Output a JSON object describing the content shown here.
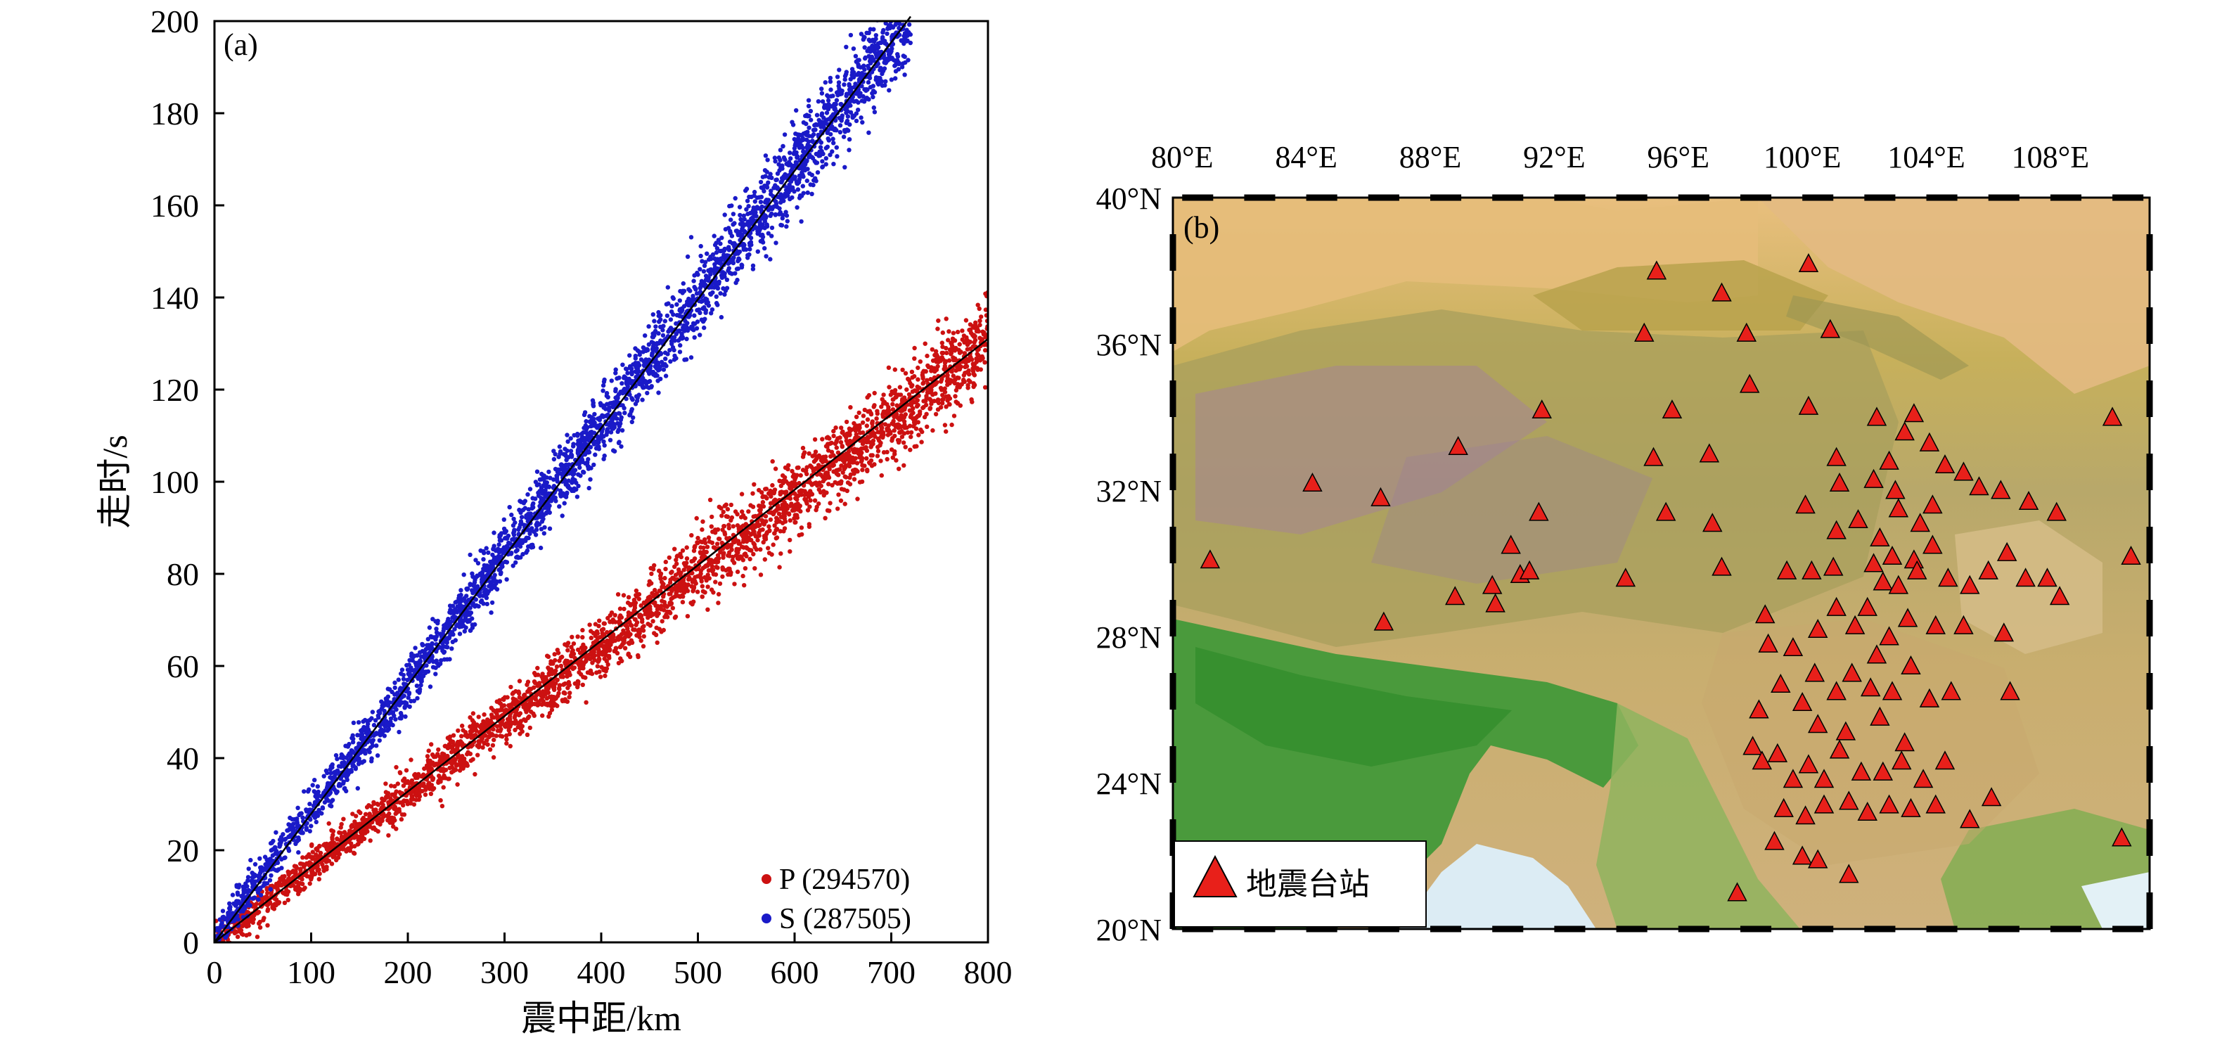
{
  "chart_data": [
    {
      "type": "scatter",
      "panel_label": "(a)",
      "xlabel": "震中距/km",
      "ylabel": "走时/s",
      "xlim": [
        0,
        800
      ],
      "ylim": [
        0,
        200
      ],
      "x_ticks": [
        0,
        100,
        200,
        300,
        400,
        500,
        600,
        700,
        800
      ],
      "y_ticks": [
        0,
        20,
        40,
        60,
        80,
        100,
        120,
        140,
        160,
        180,
        200
      ],
      "grid": false,
      "legend_position": "bottom-right",
      "series": [
        {
          "name": "P (294570)",
          "color": "#cc1111",
          "x": [
            0,
            50,
            100,
            150,
            200,
            250,
            300,
            350,
            400,
            450,
            500,
            550,
            600,
            650,
            700,
            750,
            800
          ],
          "y": [
            0,
            8,
            16.5,
            24.5,
            32.5,
            40.5,
            48.5,
            56,
            64,
            72.5,
            81,
            89,
            97,
            105,
            113,
            122,
            131
          ],
          "fit_line": {
            "x": [
              0,
              800
            ],
            "y": [
              0,
              131
            ]
          }
        },
        {
          "name": "S (287505)",
          "color": "#1a1ac8",
          "x": [
            0,
            50,
            100,
            150,
            200,
            250,
            300,
            350,
            400,
            450,
            500,
            550,
            600,
            650,
            700,
            720
          ],
          "y": [
            1,
            15,
            29,
            42,
            56,
            70,
            84,
            98,
            112,
            126,
            140,
            154,
            168,
            182,
            196,
            201
          ],
          "fit_line": {
            "x": [
              0,
              720
            ],
            "y": [
              0,
              201
            ]
          }
        }
      ]
    },
    {
      "type": "scatter",
      "panel_label": "(b)",
      "subtype": "station map",
      "lon_range": [
        79.7,
        111.2
      ],
      "lat_range": [
        20,
        40
      ],
      "lon_ticks": [
        "80°E",
        "84°E",
        "88°E",
        "92°E",
        "96°E",
        "100°E",
        "104°E",
        "108°E"
      ],
      "lon_tick_values": [
        80,
        84,
        88,
        92,
        96,
        100,
        104,
        108
      ],
      "lat_ticks": [
        "40°N",
        "36°N",
        "32°N",
        "28°N",
        "24°N",
        "20°N"
      ],
      "lat_tick_values": [
        40,
        36,
        32,
        28,
        24,
        20
      ],
      "legend_label": "地震台站",
      "legend_position": "bottom-left",
      "marker_color": "#e8201a",
      "stations": [
        [
          95.3,
          38.0
        ],
        [
          100.2,
          38.2
        ],
        [
          97.4,
          37.4
        ],
        [
          94.9,
          36.3
        ],
        [
          98.2,
          36.3
        ],
        [
          100.9,
          36.4
        ],
        [
          98.3,
          34.9
        ],
        [
          91.6,
          34.2
        ],
        [
          95.8,
          34.2
        ],
        [
          100.2,
          34.3
        ],
        [
          102.4,
          34.0
        ],
        [
          103.6,
          34.1
        ],
        [
          88.9,
          33.2
        ],
        [
          95.2,
          32.9
        ],
        [
          97.0,
          33.0
        ],
        [
          101.1,
          32.9
        ],
        [
          102.8,
          32.8
        ],
        [
          103.3,
          33.6
        ],
        [
          104.1,
          33.3
        ],
        [
          84.2,
          32.2
        ],
        [
          86.4,
          31.8
        ],
        [
          91.5,
          31.4
        ],
        [
          95.6,
          31.4
        ],
        [
          97.1,
          31.1
        ],
        [
          100.1,
          31.6
        ],
        [
          101.2,
          32.2
        ],
        [
          102.3,
          32.3
        ],
        [
          103.0,
          32.0
        ],
        [
          104.6,
          32.7
        ],
        [
          105.2,
          32.5
        ],
        [
          105.7,
          32.1
        ],
        [
          106.4,
          32.0
        ],
        [
          107.3,
          31.7
        ],
        [
          108.2,
          31.4
        ],
        [
          110.0,
          34.0
        ],
        [
          80.9,
          30.1
        ],
        [
          90.6,
          30.5
        ],
        [
          90.9,
          29.7
        ],
        [
          91.2,
          29.8
        ],
        [
          90.0,
          29.4
        ],
        [
          90.1,
          28.9
        ],
        [
          88.8,
          29.1
        ],
        [
          94.3,
          29.6
        ],
        [
          97.4,
          29.9
        ],
        [
          98.8,
          28.6
        ],
        [
          99.5,
          29.8
        ],
        [
          100.3,
          29.8
        ],
        [
          101.1,
          30.9
        ],
        [
          101.0,
          29.9
        ],
        [
          102.3,
          30.0
        ],
        [
          102.6,
          29.5
        ],
        [
          103.1,
          29.4
        ],
        [
          103.6,
          30.1
        ],
        [
          104.2,
          30.5
        ],
        [
          104.7,
          29.6
        ],
        [
          105.4,
          29.4
        ],
        [
          106.0,
          29.8
        ],
        [
          106.6,
          30.3
        ],
        [
          107.2,
          29.6
        ],
        [
          107.9,
          29.6
        ],
        [
          108.3,
          29.1
        ],
        [
          110.6,
          30.2
        ],
        [
          86.5,
          28.4
        ],
        [
          98.9,
          27.8
        ],
        [
          99.7,
          27.7
        ],
        [
          100.5,
          28.2
        ],
        [
          101.1,
          28.8
        ],
        [
          102.1,
          28.8
        ],
        [
          102.8,
          28.0
        ],
        [
          103.4,
          28.5
        ],
        [
          104.3,
          28.3
        ],
        [
          105.2,
          28.3
        ],
        [
          106.5,
          28.1
        ],
        [
          98.6,
          26.0
        ],
        [
          99.3,
          26.7
        ],
        [
          100.0,
          26.2
        ],
        [
          100.5,
          25.6
        ],
        [
          101.1,
          26.5
        ],
        [
          101.6,
          27.0
        ],
        [
          102.2,
          26.6
        ],
        [
          102.9,
          26.5
        ],
        [
          103.5,
          27.2
        ],
        [
          104.1,
          26.3
        ],
        [
          104.8,
          26.5
        ],
        [
          106.7,
          26.5
        ],
        [
          98.4,
          25.0
        ],
        [
          98.7,
          24.6
        ],
        [
          99.2,
          24.8
        ],
        [
          99.7,
          24.1
        ],
        [
          100.2,
          24.5
        ],
        [
          100.7,
          24.1
        ],
        [
          101.2,
          24.9
        ],
        [
          101.9,
          24.3
        ],
        [
          102.6,
          24.3
        ],
        [
          103.2,
          24.6
        ],
        [
          103.9,
          24.1
        ],
        [
          104.6,
          24.6
        ],
        [
          99.4,
          23.3
        ],
        [
          100.1,
          23.1
        ],
        [
          100.7,
          23.4
        ],
        [
          101.5,
          23.5
        ],
        [
          102.1,
          23.2
        ],
        [
          102.8,
          23.4
        ],
        [
          103.5,
          23.3
        ],
        [
          104.3,
          23.4
        ],
        [
          105.4,
          23.0
        ],
        [
          106.1,
          23.6
        ],
        [
          99.1,
          22.4
        ],
        [
          100.0,
          22.0
        ],
        [
          100.5,
          21.9
        ],
        [
          101.5,
          21.5
        ],
        [
          97.9,
          21.0
        ],
        [
          110.3,
          22.5
        ],
        [
          101.8,
          31.2
        ],
        [
          102.5,
          30.7
        ],
        [
          103.1,
          31.5
        ],
        [
          103.8,
          31.1
        ],
        [
          104.2,
          31.6
        ],
        [
          102.9,
          30.2
        ],
        [
          103.7,
          29.8
        ],
        [
          101.7,
          28.3
        ],
        [
          102.4,
          27.5
        ],
        [
          101.4,
          25.4
        ],
        [
          102.5,
          25.8
        ],
        [
          103.3,
          25.1
        ],
        [
          100.4,
          27.0
        ]
      ]
    }
  ]
}
